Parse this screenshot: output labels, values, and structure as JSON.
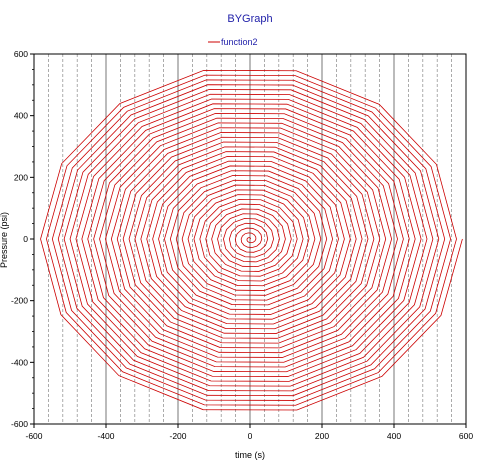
{
  "chart_data": {
    "type": "line",
    "title": "BYGraph",
    "xlabel": "time (s)",
    "ylabel": "Pressure (psi)",
    "xlim": [
      -600,
      600
    ],
    "ylim": [
      -600,
      600
    ],
    "x_ticks": [
      "-600",
      "-400",
      "-200",
      "0",
      "200",
      "400",
      "600"
    ],
    "y_ticks": [
      "600",
      "400",
      "200",
      "0",
      "-200",
      "-400",
      "-600"
    ],
    "legend_position": "top-center",
    "series": [
      {
        "name": "function2",
        "color": "#cc0000",
        "shape": "spiral",
        "center": [
          0,
          0
        ],
        "max_radius": 590,
        "turns": 36,
        "points_per_turn": 14
      }
    ]
  },
  "colors": {
    "title": "#2222aa",
    "series": "#cc0000",
    "axis": "#000000"
  }
}
